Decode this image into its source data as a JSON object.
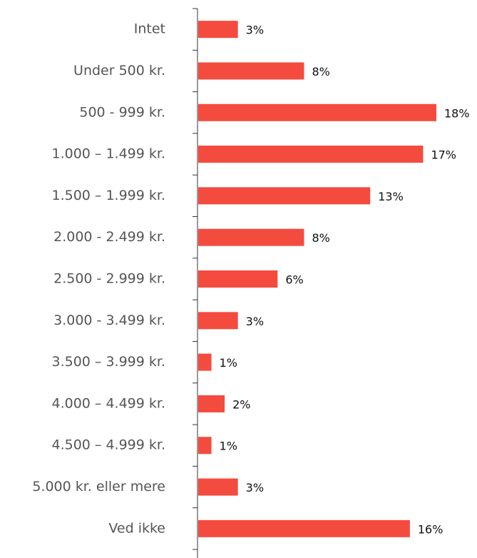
{
  "chart_data": {
    "type": "bar",
    "orientation": "horizontal",
    "categories": [
      "Intet",
      "Under 500 kr.",
      "500 - 999 kr.",
      "1.000 – 1.499 kr.",
      "1.500 – 1.999 kr.",
      "2.000 - 2.499 kr.",
      "2.500 - 2.999 kr.",
      "3.000 - 3.499 kr.",
      "3.500 – 3.999 kr.",
      "4.000 – 4.499 kr.",
      "4.500 – 4.999 kr.",
      "5.000 kr. eller mere",
      "Ved ikke"
    ],
    "values": [
      3,
      8,
      18,
      17,
      13,
      8,
      6,
      3,
      1,
      2,
      1,
      3,
      16
    ],
    "value_labels": [
      "3%",
      "8%",
      "18%",
      "17%",
      "13%",
      "8%",
      "6%",
      "3%",
      "1%",
      "2%",
      "1%",
      "3%",
      "16%"
    ],
    "color": "#f44b3f"
  }
}
